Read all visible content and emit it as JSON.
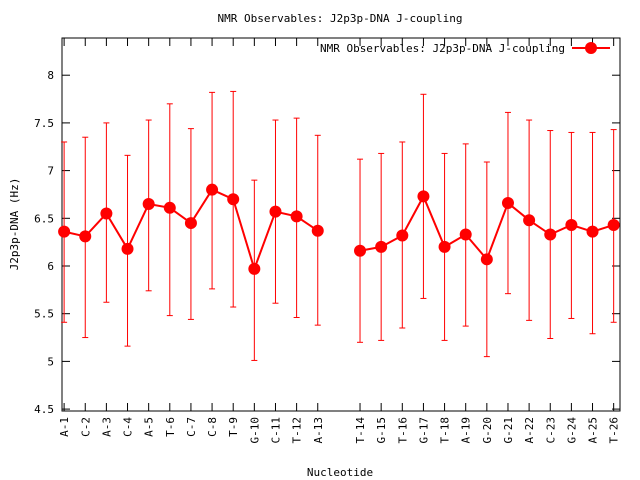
{
  "chart_data": {
    "type": "line",
    "title": "NMR Observables: J2p3p-DNA J-coupling",
    "xlabel": "Nucleotide",
    "ylabel": "J2p3p-DNA (Hz)",
    "ylim": [
      4.48,
      8.39
    ],
    "xlim": [
      0.9,
      27.3
    ],
    "yticks": [
      4.5,
      5,
      5.5,
      6,
      6.5,
      7,
      7.5,
      8
    ],
    "ytick_labels": [
      "4.5",
      "5",
      "5.5",
      "6",
      "6.5",
      "7",
      "7.5",
      "8"
    ],
    "legend": {
      "label": "NMR Observables: J2p3p-DNA J-coupling",
      "position": "top-right"
    },
    "color": "#ff0000",
    "segments": [
      {
        "categories": [
          "A-1",
          "C-2",
          "A-3",
          "C-4",
          "A-5",
          "T-6",
          "C-7",
          "C-8",
          "T-9",
          "G-10",
          "C-11",
          "T-12",
          "A-13"
        ],
        "x": [
          1,
          2,
          3,
          4,
          5,
          6,
          7,
          8,
          9,
          10,
          11,
          12,
          13
        ],
        "values": [
          6.36,
          6.31,
          6.55,
          6.18,
          6.65,
          6.61,
          6.45,
          6.8,
          6.7,
          5.97,
          6.57,
          6.52,
          6.37
        ],
        "err_high": [
          7.3,
          7.35,
          7.5,
          7.16,
          7.53,
          7.7,
          7.44,
          7.82,
          7.83,
          6.9,
          7.53,
          7.55,
          7.37
        ],
        "err_low": [
          5.41,
          5.25,
          5.62,
          5.16,
          5.74,
          5.48,
          5.44,
          5.76,
          5.57,
          5.01,
          5.61,
          5.46,
          5.38
        ]
      },
      {
        "categories": [
          "T-14",
          "G-15",
          "T-16",
          "G-17",
          "T-18",
          "A-19",
          "G-20",
          "G-21",
          "A-22",
          "C-23",
          "G-24",
          "A-25",
          "T-26"
        ],
        "x": [
          15,
          16,
          17,
          18,
          19,
          20,
          21,
          22,
          23,
          24,
          25,
          26,
          27
        ],
        "values": [
          6.16,
          6.2,
          6.32,
          6.73,
          6.2,
          6.33,
          6.07,
          6.66,
          6.48,
          6.33,
          6.43,
          6.36,
          6.43
        ],
        "err_high": [
          7.12,
          7.18,
          7.3,
          7.8,
          7.18,
          7.28,
          7.09,
          7.61,
          7.53,
          7.42,
          7.4,
          7.4,
          7.43
        ],
        "err_low": [
          5.2,
          5.22,
          5.35,
          5.66,
          5.22,
          5.37,
          5.05,
          5.71,
          5.43,
          5.24,
          5.45,
          5.29,
          5.41
        ]
      }
    ]
  }
}
